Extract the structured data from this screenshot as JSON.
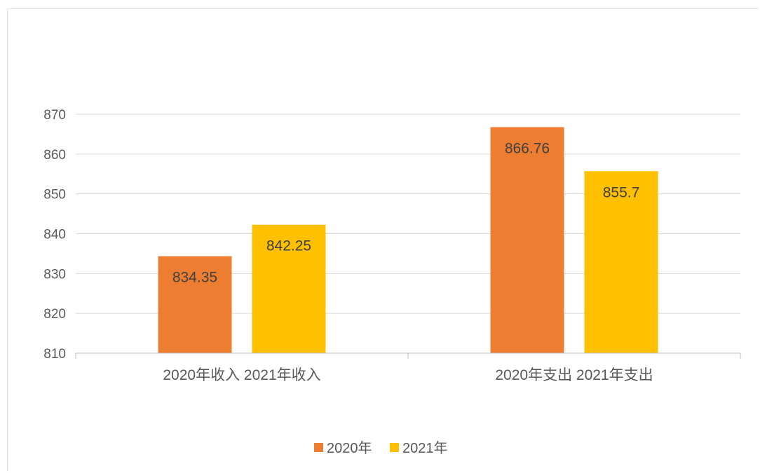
{
  "chart_data": {
    "type": "bar",
    "categories": [
      "2020年收入 2021年收入",
      "2020年支出 2021年支出"
    ],
    "series": [
      {
        "name": "2020年",
        "values": [
          834.35,
          866.76
        ],
        "color": "#ED7D31"
      },
      {
        "name": "2021年",
        "values": [
          842.25,
          855.7
        ],
        "color": "#FFC000"
      }
    ],
    "data_labels": [
      [
        "834.35",
        "866.76"
      ],
      [
        "842.25",
        "855.7"
      ]
    ],
    "ylim": [
      810,
      870
    ],
    "yticks": [
      810,
      820,
      830,
      840,
      850,
      860,
      870
    ],
    "grid": true,
    "legend_position": "bottom",
    "title": "",
    "xlabel": "",
    "ylabel": ""
  }
}
